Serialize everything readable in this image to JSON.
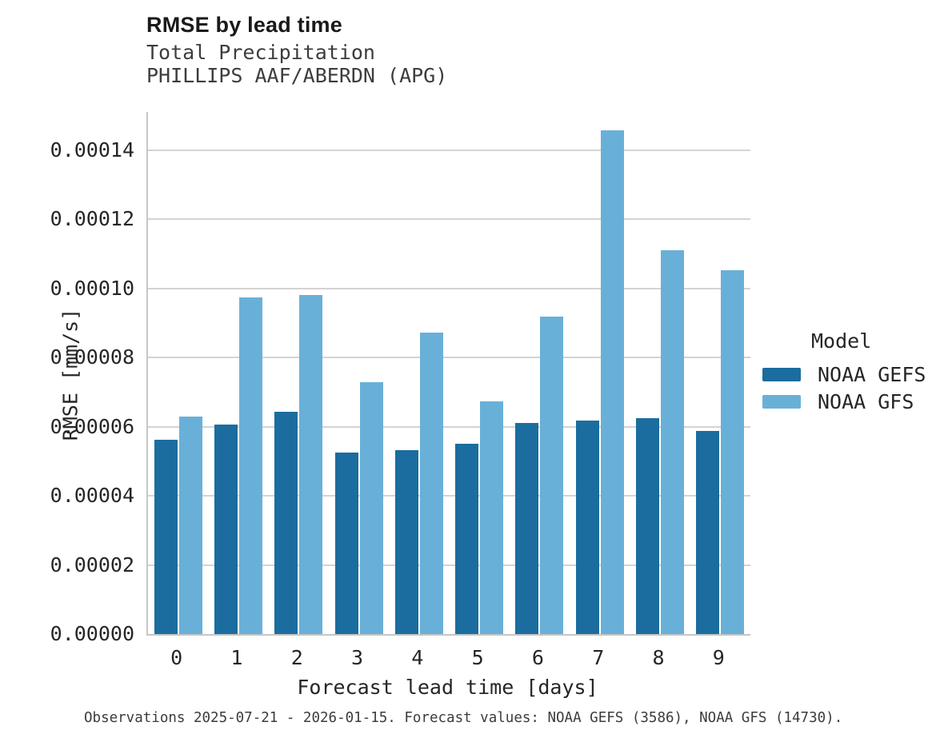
{
  "header": {
    "title": "RMSE by lead time",
    "subtitle1": "Total Precipitation",
    "subtitle2": "PHILLIPS AAF/ABERDN (APG)"
  },
  "chart_data": {
    "type": "bar",
    "title": "RMSE by lead time",
    "subtitle": [
      "Total Precipitation",
      "PHILLIPS AAF/ABERDN (APG)"
    ],
    "categories": [
      "0",
      "1",
      "2",
      "3",
      "4",
      "5",
      "6",
      "7",
      "8",
      "9"
    ],
    "series": [
      {
        "name": "NOAA GEFS",
        "color": "#1a6d9e",
        "values": [
          5.61e-05,
          6.05e-05,
          6.44e-05,
          5.25e-05,
          5.31e-05,
          5.5e-05,
          6.11e-05,
          6.18e-05,
          6.24e-05,
          5.88e-05
        ]
      },
      {
        "name": "NOAA GFS",
        "color": "#69b0d9",
        "values": [
          6.29e-05,
          9.74e-05,
          9.8e-05,
          7.28e-05,
          8.72e-05,
          6.73e-05,
          9.18e-05,
          0.0001457,
          0.0001109,
          0.0001053
        ]
      }
    ],
    "xlabel": "Forecast lead time [days]",
    "ylabel": "RMSE [mm/s]",
    "ylim": [
      0,
      0.000151
    ],
    "yticks": [
      0.0,
      2e-05,
      4e-05,
      6e-05,
      8e-05,
      0.0001,
      0.00012,
      0.00014
    ],
    "ytick_labels": [
      "0.00000",
      "0.00002",
      "0.00004",
      "0.00006",
      "0.00008",
      "0.00010",
      "0.00012",
      "0.00014"
    ],
    "grid": true,
    "legend": {
      "title": "Model",
      "position": "right",
      "entries": [
        "NOAA GEFS",
        "NOAA GFS"
      ]
    }
  },
  "legend": {
    "title": "Model",
    "items": [
      {
        "label": "NOAA GEFS",
        "color": "#1a6d9e"
      },
      {
        "label": "NOAA GFS",
        "color": "#69b0d9"
      }
    ]
  },
  "caption": "Observations 2025-07-21 - 2026-01-15. Forecast values: NOAA GEFS (3586), NOAA GFS (14730)."
}
